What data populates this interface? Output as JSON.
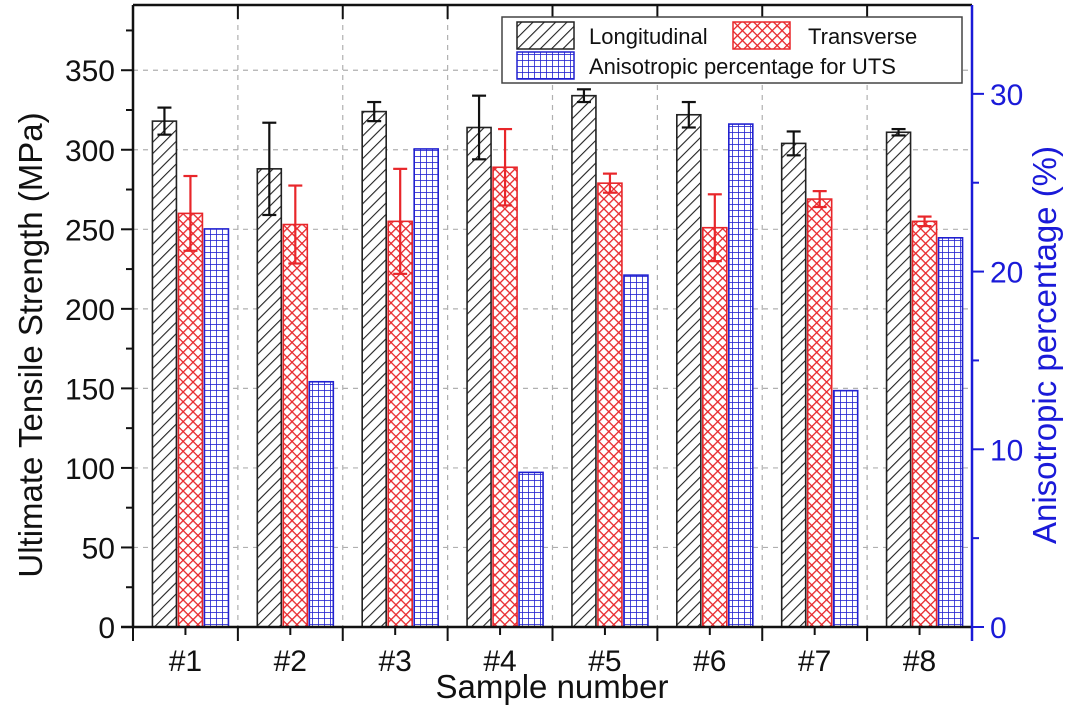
{
  "chart_data": {
    "type": "bar",
    "title": "",
    "xlabel": "Sample number",
    "ylabel": "Ultimate Tensile Strength (MPa)",
    "y2label": "Anisotropic percentage (%)",
    "categories": [
      "#1",
      "#2",
      "#3",
      "#4",
      "#5",
      "#6",
      "#7",
      "#8"
    ],
    "ylim": [
      0,
      391
    ],
    "yticks": [
      0,
      50,
      100,
      150,
      200,
      250,
      300,
      350
    ],
    "y2lim": [
      0,
      35
    ],
    "y2ticks": [
      0,
      10,
      20,
      30
    ],
    "grid": true,
    "legend_position": "top-right",
    "series": [
      {
        "name": "Longitudinal",
        "axis": "left",
        "pattern": "diagonal-hatch",
        "color": "#222222",
        "values": [
          318,
          288,
          324,
          314,
          334,
          322,
          304,
          311
        ],
        "errors": [
          8.5,
          29,
          6,
          20,
          4,
          8,
          7.5,
          2
        ]
      },
      {
        "name": "Transverse",
        "axis": "left",
        "pattern": "crosshatch",
        "color": "#e8262a",
        "values": [
          260,
          253,
          255,
          289,
          279,
          251,
          269,
          255
        ],
        "errors": [
          23.5,
          24.5,
          33,
          24,
          6,
          21,
          5,
          3
        ]
      },
      {
        "name": "Anisotropic percentage for UTS",
        "axis": "right",
        "pattern": "grid",
        "color": "#2020d0",
        "values": [
          22.4,
          13.8,
          26.9,
          8.7,
          19.8,
          28.3,
          13.3,
          21.9
        ],
        "errors": null
      }
    ],
    "colors": {
      "left_axis": "#111111",
      "right_axis": "#1a1ad8",
      "grid": "#aaaaaa"
    }
  }
}
